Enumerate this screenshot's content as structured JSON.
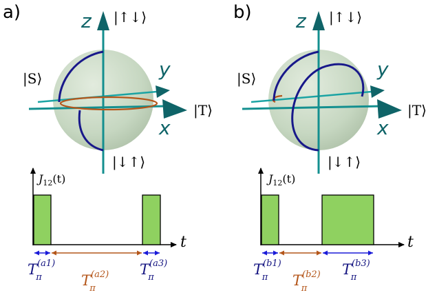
{
  "panels": [
    {
      "label": "a)",
      "kets": {
        "top": "|↑↓⟩",
        "bottom": "|↓↑⟩",
        "left": "|S⟩",
        "right": "|T⟩"
      },
      "axes": {
        "z": "z",
        "y": "y",
        "x": "x"
      },
      "plot": {
        "ylabel": "J",
        "ylabel_sub": "12",
        "ylabel_arg": "(t)",
        "xlabel": "t",
        "intervals": [
          {
            "symbol": "T",
            "sub": "π",
            "sup": "(a1)",
            "color": "#151581",
            "pulse": true
          },
          {
            "symbol": "T",
            "sub": "π",
            "sup": "(a2)",
            "color": "#b4561a",
            "pulse": false
          },
          {
            "symbol": "T",
            "sub": "π",
            "sup": "(a3)",
            "color": "#151581",
            "pulse": true
          }
        ]
      }
    },
    {
      "label": "b)",
      "kets": {
        "top": "|↑↓⟩",
        "bottom": "|↓↑⟩",
        "left": "|S⟩",
        "right": "|T⟩"
      },
      "axes": {
        "z": "z",
        "y": "y",
        "x": "x"
      },
      "plot": {
        "ylabel": "J",
        "ylabel_sub": "12",
        "ylabel_arg": "(t)",
        "xlabel": "t",
        "intervals": [
          {
            "symbol": "T",
            "sub": "π",
            "sup": "(b1)",
            "color": "#151581",
            "pulse": true
          },
          {
            "symbol": "T",
            "sub": "π",
            "sup": "(b2)",
            "color": "#b4561a",
            "pulse": false
          },
          {
            "symbol": "T",
            "sub": "π",
            "sup": "(b3)",
            "color": "#151581",
            "pulse": true
          }
        ]
      }
    }
  ],
  "colors": {
    "sphere": "#b9cfb4",
    "axis": "#138f8f",
    "axis_dark": "#0f6468",
    "trajectory_blue": "#18188a",
    "trajectory_orange": "#b4561a",
    "pulse_fill": "#8fd160",
    "interval_blue": "#151581",
    "interval_orange": "#b4561a"
  }
}
